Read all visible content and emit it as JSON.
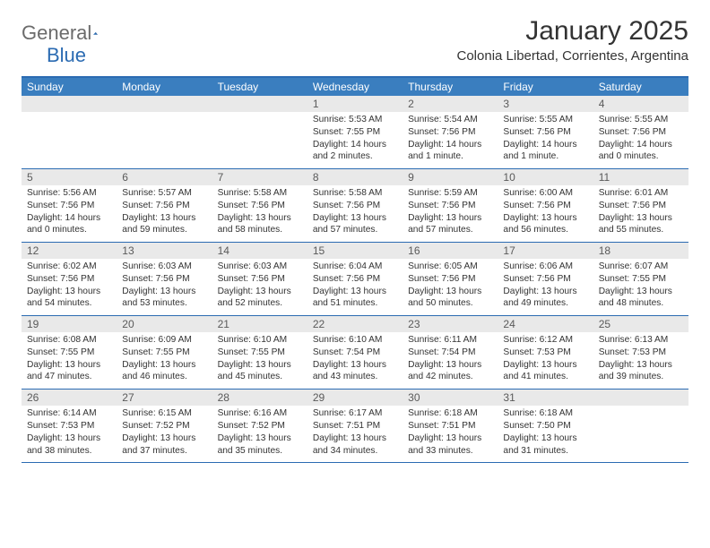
{
  "brand": {
    "text1": "General",
    "text2": "Blue",
    "text_color": "#6b6b6b",
    "accent_color": "#2b6bb2"
  },
  "title": "January 2025",
  "location": "Colonia Libertad, Corrientes, Argentina",
  "colors": {
    "header_bg": "#3a7ebf",
    "header_text": "#ffffff",
    "row_border": "#2b6bb2",
    "daynum_bg": "#e9e9e9",
    "daynum_text": "#5a5a5a",
    "body_text": "#333333",
    "background": "#ffffff"
  },
  "typography": {
    "month_title_fontsize": 30,
    "location_fontsize": 15,
    "weekday_fontsize": 12,
    "daynum_fontsize": 12,
    "details_fontsize": 10.2
  },
  "weekdays": [
    "Sunday",
    "Monday",
    "Tuesday",
    "Wednesday",
    "Thursday",
    "Friday",
    "Saturday"
  ],
  "weeks": [
    [
      {
        "n": "",
        "sunrise": "",
        "sunset": "",
        "daylight": ""
      },
      {
        "n": "",
        "sunrise": "",
        "sunset": "",
        "daylight": ""
      },
      {
        "n": "",
        "sunrise": "",
        "sunset": "",
        "daylight": ""
      },
      {
        "n": "1",
        "sunrise": "Sunrise: 5:53 AM",
        "sunset": "Sunset: 7:55 PM",
        "daylight": "Daylight: 14 hours and 2 minutes."
      },
      {
        "n": "2",
        "sunrise": "Sunrise: 5:54 AM",
        "sunset": "Sunset: 7:56 PM",
        "daylight": "Daylight: 14 hours and 1 minute."
      },
      {
        "n": "3",
        "sunrise": "Sunrise: 5:55 AM",
        "sunset": "Sunset: 7:56 PM",
        "daylight": "Daylight: 14 hours and 1 minute."
      },
      {
        "n": "4",
        "sunrise": "Sunrise: 5:55 AM",
        "sunset": "Sunset: 7:56 PM",
        "daylight": "Daylight: 14 hours and 0 minutes."
      }
    ],
    [
      {
        "n": "5",
        "sunrise": "Sunrise: 5:56 AM",
        "sunset": "Sunset: 7:56 PM",
        "daylight": "Daylight: 14 hours and 0 minutes."
      },
      {
        "n": "6",
        "sunrise": "Sunrise: 5:57 AM",
        "sunset": "Sunset: 7:56 PM",
        "daylight": "Daylight: 13 hours and 59 minutes."
      },
      {
        "n": "7",
        "sunrise": "Sunrise: 5:58 AM",
        "sunset": "Sunset: 7:56 PM",
        "daylight": "Daylight: 13 hours and 58 minutes."
      },
      {
        "n": "8",
        "sunrise": "Sunrise: 5:58 AM",
        "sunset": "Sunset: 7:56 PM",
        "daylight": "Daylight: 13 hours and 57 minutes."
      },
      {
        "n": "9",
        "sunrise": "Sunrise: 5:59 AM",
        "sunset": "Sunset: 7:56 PM",
        "daylight": "Daylight: 13 hours and 57 minutes."
      },
      {
        "n": "10",
        "sunrise": "Sunrise: 6:00 AM",
        "sunset": "Sunset: 7:56 PM",
        "daylight": "Daylight: 13 hours and 56 minutes."
      },
      {
        "n": "11",
        "sunrise": "Sunrise: 6:01 AM",
        "sunset": "Sunset: 7:56 PM",
        "daylight": "Daylight: 13 hours and 55 minutes."
      }
    ],
    [
      {
        "n": "12",
        "sunrise": "Sunrise: 6:02 AM",
        "sunset": "Sunset: 7:56 PM",
        "daylight": "Daylight: 13 hours and 54 minutes."
      },
      {
        "n": "13",
        "sunrise": "Sunrise: 6:03 AM",
        "sunset": "Sunset: 7:56 PM",
        "daylight": "Daylight: 13 hours and 53 minutes."
      },
      {
        "n": "14",
        "sunrise": "Sunrise: 6:03 AM",
        "sunset": "Sunset: 7:56 PM",
        "daylight": "Daylight: 13 hours and 52 minutes."
      },
      {
        "n": "15",
        "sunrise": "Sunrise: 6:04 AM",
        "sunset": "Sunset: 7:56 PM",
        "daylight": "Daylight: 13 hours and 51 minutes."
      },
      {
        "n": "16",
        "sunrise": "Sunrise: 6:05 AM",
        "sunset": "Sunset: 7:56 PM",
        "daylight": "Daylight: 13 hours and 50 minutes."
      },
      {
        "n": "17",
        "sunrise": "Sunrise: 6:06 AM",
        "sunset": "Sunset: 7:56 PM",
        "daylight": "Daylight: 13 hours and 49 minutes."
      },
      {
        "n": "18",
        "sunrise": "Sunrise: 6:07 AM",
        "sunset": "Sunset: 7:55 PM",
        "daylight": "Daylight: 13 hours and 48 minutes."
      }
    ],
    [
      {
        "n": "19",
        "sunrise": "Sunrise: 6:08 AM",
        "sunset": "Sunset: 7:55 PM",
        "daylight": "Daylight: 13 hours and 47 minutes."
      },
      {
        "n": "20",
        "sunrise": "Sunrise: 6:09 AM",
        "sunset": "Sunset: 7:55 PM",
        "daylight": "Daylight: 13 hours and 46 minutes."
      },
      {
        "n": "21",
        "sunrise": "Sunrise: 6:10 AM",
        "sunset": "Sunset: 7:55 PM",
        "daylight": "Daylight: 13 hours and 45 minutes."
      },
      {
        "n": "22",
        "sunrise": "Sunrise: 6:10 AM",
        "sunset": "Sunset: 7:54 PM",
        "daylight": "Daylight: 13 hours and 43 minutes."
      },
      {
        "n": "23",
        "sunrise": "Sunrise: 6:11 AM",
        "sunset": "Sunset: 7:54 PM",
        "daylight": "Daylight: 13 hours and 42 minutes."
      },
      {
        "n": "24",
        "sunrise": "Sunrise: 6:12 AM",
        "sunset": "Sunset: 7:53 PM",
        "daylight": "Daylight: 13 hours and 41 minutes."
      },
      {
        "n": "25",
        "sunrise": "Sunrise: 6:13 AM",
        "sunset": "Sunset: 7:53 PM",
        "daylight": "Daylight: 13 hours and 39 minutes."
      }
    ],
    [
      {
        "n": "26",
        "sunrise": "Sunrise: 6:14 AM",
        "sunset": "Sunset: 7:53 PM",
        "daylight": "Daylight: 13 hours and 38 minutes."
      },
      {
        "n": "27",
        "sunrise": "Sunrise: 6:15 AM",
        "sunset": "Sunset: 7:52 PM",
        "daylight": "Daylight: 13 hours and 37 minutes."
      },
      {
        "n": "28",
        "sunrise": "Sunrise: 6:16 AM",
        "sunset": "Sunset: 7:52 PM",
        "daylight": "Daylight: 13 hours and 35 minutes."
      },
      {
        "n": "29",
        "sunrise": "Sunrise: 6:17 AM",
        "sunset": "Sunset: 7:51 PM",
        "daylight": "Daylight: 13 hours and 34 minutes."
      },
      {
        "n": "30",
        "sunrise": "Sunrise: 6:18 AM",
        "sunset": "Sunset: 7:51 PM",
        "daylight": "Daylight: 13 hours and 33 minutes."
      },
      {
        "n": "31",
        "sunrise": "Sunrise: 6:18 AM",
        "sunset": "Sunset: 7:50 PM",
        "daylight": "Daylight: 13 hours and 31 minutes."
      },
      {
        "n": "",
        "sunrise": "",
        "sunset": "",
        "daylight": ""
      }
    ]
  ]
}
